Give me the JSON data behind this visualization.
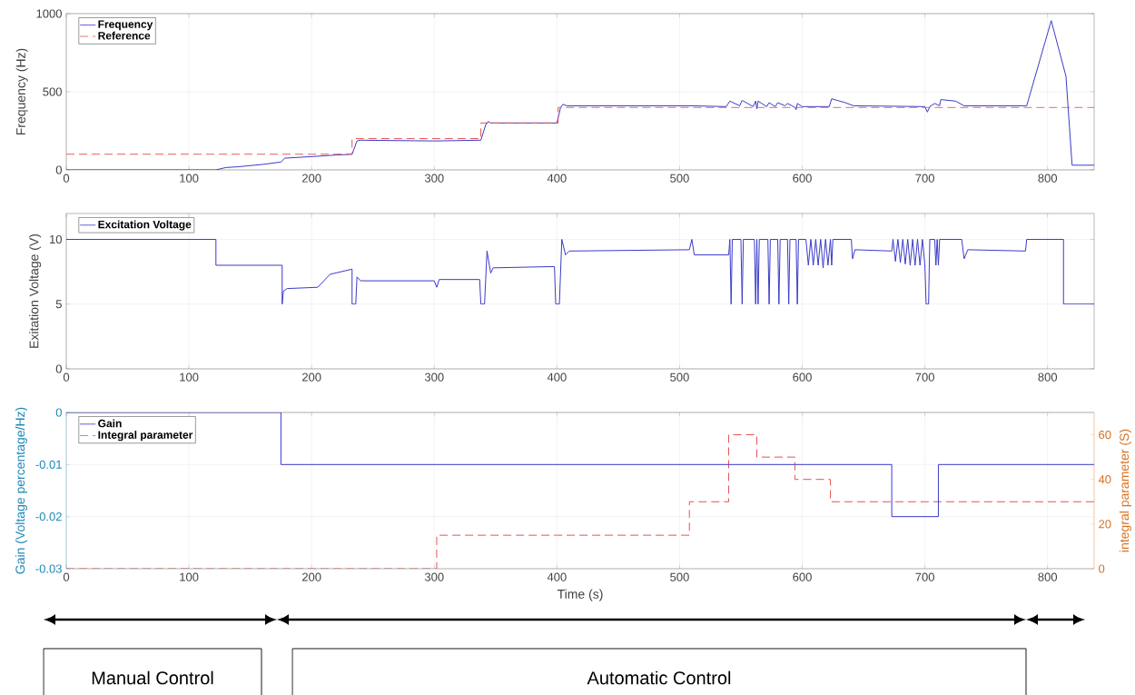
{
  "chart_data": [
    {
      "type": "line",
      "ylabel": "Frequency (Hz)",
      "xlim": [
        0,
        838
      ],
      "ylim": [
        0,
        1000
      ],
      "xticks": [
        0,
        100,
        200,
        300,
        400,
        500,
        600,
        700,
        800
      ],
      "yticks": [
        0,
        500,
        1000
      ],
      "grid": true,
      "legend": "top left",
      "series": [
        {
          "name": "Frequency",
          "color": "#3a3ac8",
          "line_style": "solid",
          "x": [
            0,
            122,
            130,
            140,
            160,
            175,
            178,
            200,
            210,
            220,
            233,
            237,
            240,
            300,
            338,
            342,
            344,
            346,
            400,
            403,
            405,
            408,
            510,
            538,
            541,
            549,
            551,
            560,
            562,
            563,
            564,
            571,
            573,
            578,
            580,
            586,
            588,
            594,
            595,
            596,
            600,
            622,
            624,
            635,
            642,
            700,
            702,
            704,
            708,
            712,
            713,
            725,
            732,
            783,
            803,
            815,
            820,
            838
          ],
          "values": [
            0,
            0,
            15,
            20,
            35,
            50,
            75,
            85,
            90,
            95,
            100,
            185,
            190,
            185,
            190,
            290,
            310,
            300,
            300,
            400,
            420,
            410,
            410,
            405,
            440,
            410,
            445,
            405,
            440,
            390,
            440,
            405,
            430,
            405,
            430,
            410,
            425,
            400,
            385,
            425,
            405,
            405,
            455,
            430,
            410,
            405,
            370,
            405,
            425,
            410,
            450,
            440,
            410,
            410,
            955,
            600,
            30,
            30
          ]
        },
        {
          "name": "Reference",
          "color": "#e8504f",
          "type": "step",
          "line_style": "dashed",
          "x": [
            0,
            233,
            338,
            401,
            838
          ],
          "values": [
            100,
            200,
            300,
            400,
            400
          ]
        }
      ]
    },
    {
      "type": "line",
      "ylabel": "Exitation Voltage (V)",
      "xlim": [
        0,
        838
      ],
      "ylim": [
        0,
        12
      ],
      "xticks": [
        0,
        100,
        200,
        300,
        400,
        500,
        600,
        700,
        800
      ],
      "yticks": [
        0,
        5,
        10
      ],
      "grid": true,
      "legend": "top left",
      "series": [
        {
          "name": "Excitation Voltage",
          "color": "#3a3ac8",
          "line_style": "solid",
          "x": [
            0,
            122,
            122,
            176,
            176,
            177,
            180,
            205,
            215,
            233,
            233,
            236,
            237,
            240,
            300,
            302,
            304,
            337,
            338,
            341,
            343,
            346,
            348,
            398,
            399,
            402,
            404,
            407,
            410,
            508,
            510,
            512,
            540,
            541,
            542,
            543,
            550,
            551,
            552,
            561,
            562,
            563,
            564,
            565,
            572,
            573,
            574,
            580,
            581,
            582,
            588,
            589,
            590,
            595,
            596,
            597,
            603,
            605,
            607,
            609,
            611,
            613,
            615,
            617,
            619,
            621,
            623,
            624,
            625,
            640,
            641,
            643,
            673,
            674,
            676,
            678,
            680,
            682,
            684,
            686,
            688,
            690,
            692,
            694,
            696,
            698,
            700,
            701,
            703,
            704,
            708,
            709,
            710,
            711,
            712,
            730,
            732,
            735,
            782,
            783,
            813,
            813,
            838
          ],
          "values": [
            10,
            10,
            8,
            8,
            5,
            6,
            6.2,
            6.3,
            7.3,
            7.7,
            5,
            5,
            7.1,
            6.8,
            6.8,
            6.3,
            6.9,
            6.9,
            5,
            5,
            9.1,
            7.4,
            7.8,
            7.9,
            5,
            5,
            10,
            8.8,
            9.1,
            9.2,
            10,
            8.8,
            8.8,
            10,
            5,
            10,
            10,
            5,
            10,
            10,
            5,
            10,
            5,
            10,
            10,
            5,
            10,
            10,
            5,
            10,
            10,
            5,
            10,
            10,
            5,
            10,
            10,
            8,
            10,
            8,
            10,
            8,
            10,
            7.8,
            10,
            8,
            10,
            8,
            10,
            10,
            8.5,
            9.2,
            9.1,
            10,
            8.3,
            10,
            8.2,
            10,
            8.1,
            10,
            8,
            10,
            8,
            10,
            8,
            10,
            8,
            5,
            5,
            10,
            10,
            8,
            10,
            8,
            10,
            10,
            8.5,
            9.2,
            9.1,
            10,
            10,
            5,
            5
          ]
        }
      ]
    },
    {
      "type": "line",
      "xlabel": "Time (s)",
      "ylabel": "Gain (Voltage percentage/Hz)",
      "y2label": "integral parameter (S)",
      "xlim": [
        0,
        838
      ],
      "ylim": [
        -0.03,
        0
      ],
      "y2lim": [
        0,
        70
      ],
      "xticks": [
        0,
        100,
        200,
        300,
        400,
        500,
        600,
        700,
        800
      ],
      "yticks": [
        -0.03,
        -0.02,
        -0.01,
        0
      ],
      "y2ticks": [
        0,
        20,
        40,
        60
      ],
      "grid": true,
      "legend": "top left",
      "annotations": [
        "Manual Control",
        "Automatic Control"
      ],
      "series": [
        {
          "name": "Gain",
          "color": "#3a3ac8",
          "type": "step",
          "line_style": "solid",
          "x": [
            0,
            175,
            673,
            711,
            838
          ],
          "values": [
            0,
            -0.01,
            -0.02,
            -0.01,
            -0.01
          ]
        },
        {
          "name": "Integral parameter",
          "color": "#e8504f",
          "type": "step",
          "line_style": "dashed",
          "axis": "y2",
          "x": [
            0,
            302,
            508,
            540,
            563,
            594,
            623,
            838
          ],
          "values": [
            0,
            15,
            30,
            60,
            50,
            40,
            30,
            30
          ]
        }
      ]
    }
  ]
}
